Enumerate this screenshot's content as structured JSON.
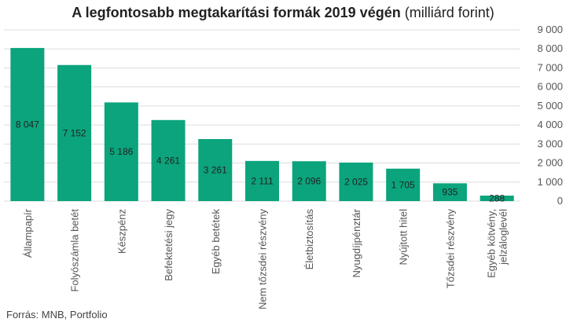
{
  "source": "Forrás: MNB, Portfolio",
  "chart_data": {
    "type": "bar",
    "title": "A legfontosabb megtakarítási formák 2019 végén",
    "title_unit": "(milliárd forint)",
    "categories": [
      [
        "Állampapír"
      ],
      [
        "Folyószámla betét"
      ],
      [
        "Készpénz"
      ],
      [
        "Befektetési jegy"
      ],
      [
        "Egyéb betétek"
      ],
      [
        "Nem tőzsdei részvény"
      ],
      [
        "Életbiztosítás"
      ],
      [
        "Nyugdíjpénztár"
      ],
      [
        "Nyújtott hitel"
      ],
      [
        "Tőzsdei részvény"
      ],
      [
        "Egyéb kötvény,",
        "jelzáloglevél"
      ]
    ],
    "values": [
      8047,
      7152,
      5186,
      4261,
      3261,
      2111,
      2096,
      2025,
      1705,
      935,
      288
    ],
    "value_labels": [
      "8 047",
      "7 152",
      "5 186",
      "4 261",
      "3 261",
      "2 111",
      "2 096",
      "2 025",
      "1 705",
      "935",
      "288"
    ],
    "ylim": [
      0,
      9000
    ],
    "yticks": [
      0,
      1000,
      2000,
      3000,
      4000,
      5000,
      6000,
      7000,
      8000,
      9000
    ],
    "ytick_labels": [
      "0",
      "1 000",
      "2 000",
      "3 000",
      "4 000",
      "5 000",
      "6 000",
      "7 000",
      "8 000",
      "9 000"
    ],
    "yaxis_position": "right",
    "grid": true,
    "bar_color": "#0ba47c"
  }
}
